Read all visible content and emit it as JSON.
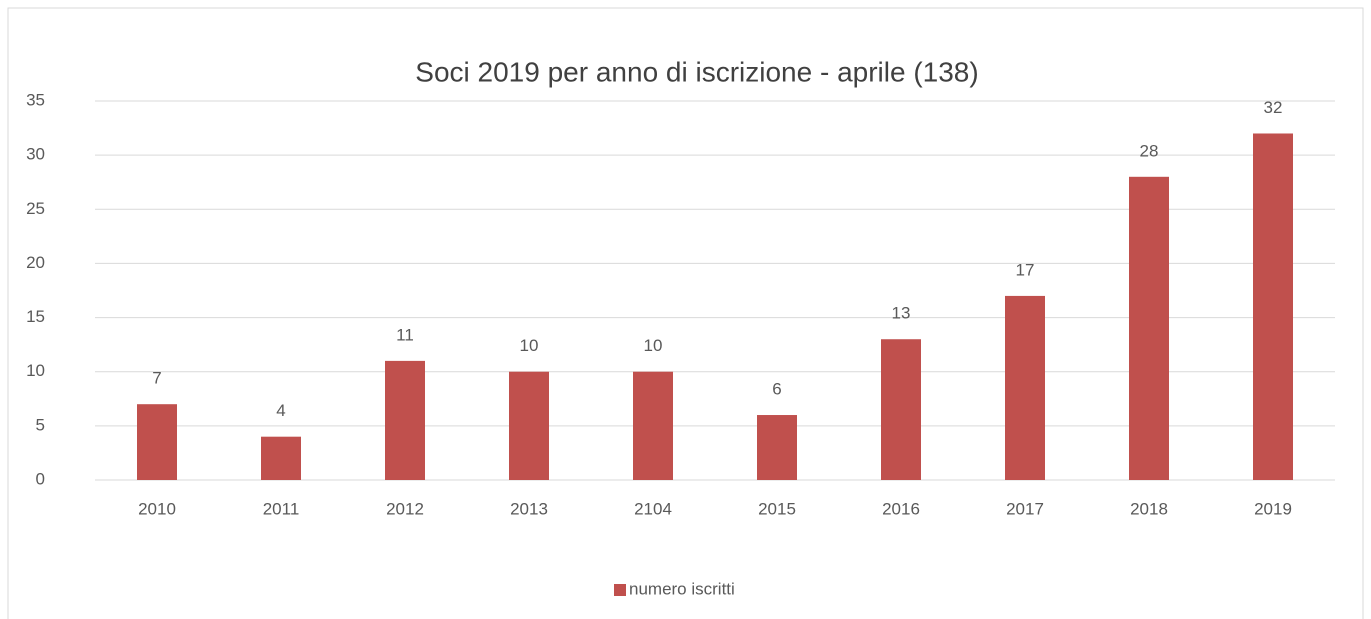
{
  "chart_data": {
    "type": "bar",
    "title": "Soci 2019 per anno di iscrizione - aprile (138)",
    "categories": [
      "2010",
      "2011",
      "2012",
      "2013",
      "2104",
      "2015",
      "2016",
      "2017",
      "2018",
      "2019"
    ],
    "series": [
      {
        "name": "numero iscritti",
        "color": "#c0504d",
        "values": [
          7,
          4,
          11,
          10,
          10,
          6,
          13,
          17,
          28,
          32
        ]
      }
    ],
    "ylim": [
      0,
      35
    ],
    "yticks": [
      0,
      5,
      10,
      15,
      20,
      25,
      30,
      35
    ],
    "grid": true,
    "legend": "bottom",
    "data_labels": true
  }
}
